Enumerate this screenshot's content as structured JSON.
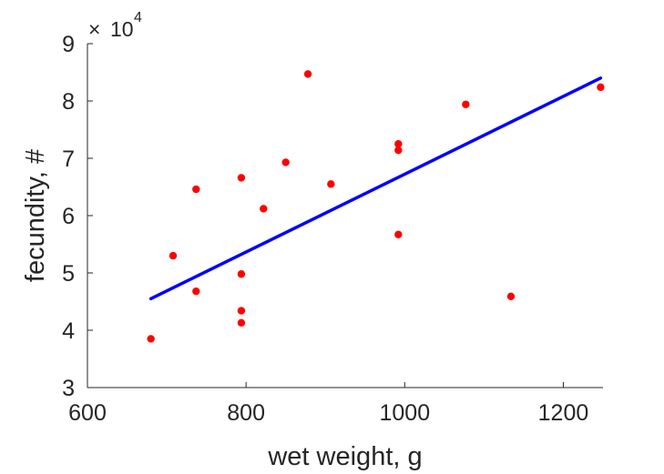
{
  "chart_data": {
    "type": "scatter",
    "xlabel": "wet weight, g",
    "ylabel": "fecundity, #",
    "xlim": [
      600,
      1250
    ],
    "ylim": [
      3,
      9
    ],
    "y_multiplier": {
      "base": "10",
      "exponent": "4",
      "prefix": "×"
    },
    "xticks": [
      "600",
      "800",
      "1000",
      "1200"
    ],
    "yticks": [
      "3",
      "4",
      "5",
      "6",
      "7",
      "8",
      "9"
    ],
    "grid": false,
    "series": [
      {
        "kind": "points",
        "color": "#ff0000",
        "points": [
          {
            "x": 680,
            "y": 3.85
          },
          {
            "x": 708,
            "y": 5.3
          },
          {
            "x": 737,
            "y": 4.68
          },
          {
            "x": 737,
            "y": 6.46
          },
          {
            "x": 794,
            "y": 4.13
          },
          {
            "x": 794,
            "y": 4.34
          },
          {
            "x": 794,
            "y": 4.98
          },
          {
            "x": 794,
            "y": 6.66
          },
          {
            "x": 822,
            "y": 6.12
          },
          {
            "x": 850,
            "y": 6.93
          },
          {
            "x": 878,
            "y": 8.47
          },
          {
            "x": 907,
            "y": 6.55
          },
          {
            "x": 992,
            "y": 5.67
          },
          {
            "x": 992,
            "y": 7.14
          },
          {
            "x": 992,
            "y": 7.25
          },
          {
            "x": 1077,
            "y": 7.94
          },
          {
            "x": 1134,
            "y": 4.59
          },
          {
            "x": 1247,
            "y": 8.24
          }
        ]
      },
      {
        "kind": "fit-line",
        "color": "#0000ff",
        "points": [
          {
            "x": 680,
            "y": 4.55
          },
          {
            "x": 1247,
            "y": 8.4
          }
        ]
      }
    ]
  }
}
